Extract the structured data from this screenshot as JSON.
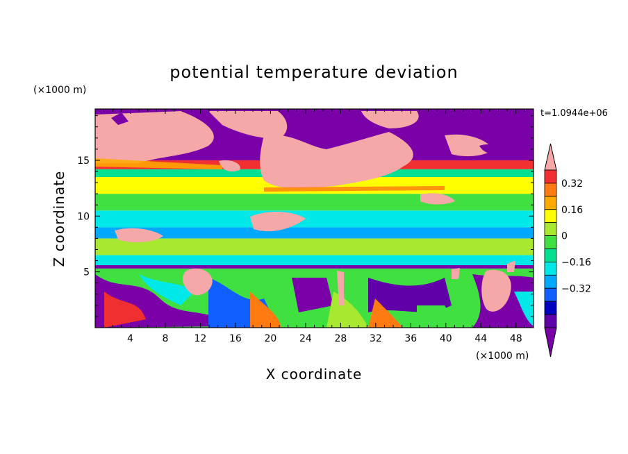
{
  "chart_data": {
    "type": "heatmap",
    "title": "potential temperature deviation",
    "xlabel": "X coordinate",
    "ylabel": "Z coordinate",
    "x_unit": "(×1000 m)",
    "y_unit": "(×1000 m)",
    "time_label": "t=1.0944e+06",
    "xlim": [
      0,
      50
    ],
    "ylim": [
      0,
      19.6
    ],
    "x_ticks": [
      4,
      8,
      12,
      16,
      20,
      24,
      28,
      32,
      36,
      40,
      44,
      48
    ],
    "y_ticks": [
      5,
      10,
      15
    ],
    "colorbar": {
      "tick_labels": [
        "0.32",
        "0.16",
        "0",
        "-0.16",
        "-0.32"
      ],
      "colors_top_to_bottom": [
        "#f4a9a8",
        "#f03030",
        "#ff7a10",
        "#ffaa00",
        "#ffff00",
        "#a8e830",
        "#40e040",
        "#00e090",
        "#00e8e8",
        "#00a8ff",
        "#1060ff",
        "#0000c0",
        "#6000a8",
        "#7a00a8"
      ]
    },
    "layers": [
      {
        "z_range": [
          0,
          5.3
        ],
        "description_color": "mixed"
      },
      {
        "z_range": [
          5.3,
          5.6
        ],
        "value_color": "#7a00a8"
      },
      {
        "z_range": [
          5.6,
          6.5
        ],
        "value_color": "#00e8e8"
      },
      {
        "z_range": [
          6.5,
          8.0
        ],
        "value_color": "#a8e830"
      },
      {
        "z_range": [
          8.0,
          9.0
        ],
        "value_color": "#00a8ff"
      },
      {
        "z_range": [
          9.0,
          10.5
        ],
        "value_color": "#00e8e8"
      },
      {
        "z_range": [
          10.5,
          12.0
        ],
        "value_color": "#40e040"
      },
      {
        "z_range": [
          12.0,
          13.5
        ],
        "value_color": "#ffff00"
      },
      {
        "z_range": [
          13.5,
          14.2
        ],
        "value_color": "#00e090"
      },
      {
        "z_range": [
          14.2,
          15.0
        ],
        "value_color": "#f03030"
      },
      {
        "z_range": [
          15.0,
          19.6
        ],
        "value_color": "#7a00a8"
      }
    ]
  }
}
